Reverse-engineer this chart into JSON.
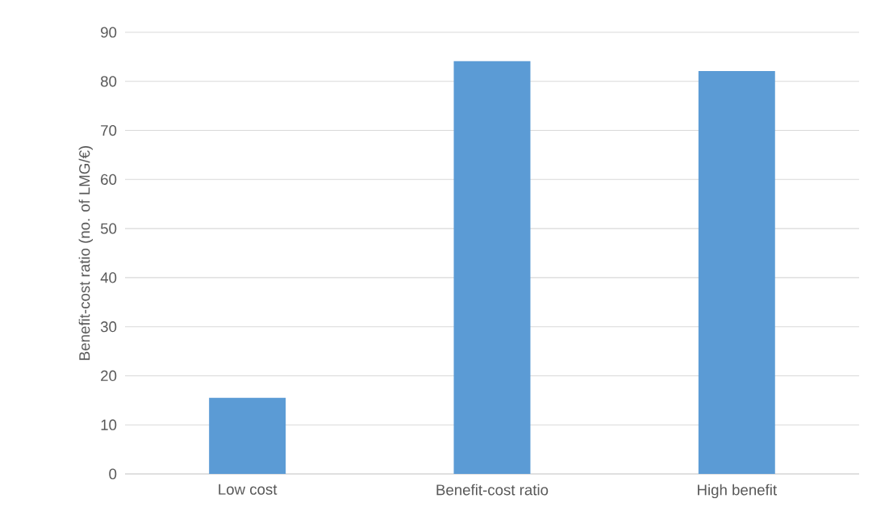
{
  "chart_data": {
    "type": "bar",
    "ylabel": "Benefit-cost ratio (no. of LMG/€)",
    "categories": [
      "Low cost",
      "Benefit-cost ratio",
      "High benefit"
    ],
    "values": [
      15.5,
      84.1,
      82.1
    ],
    "color": "#5b9bd5",
    "ylim": [
      0,
      90
    ],
    "yticks": [
      0,
      10,
      20,
      30,
      40,
      50,
      60,
      70,
      80,
      90
    ],
    "grid": "y"
  }
}
